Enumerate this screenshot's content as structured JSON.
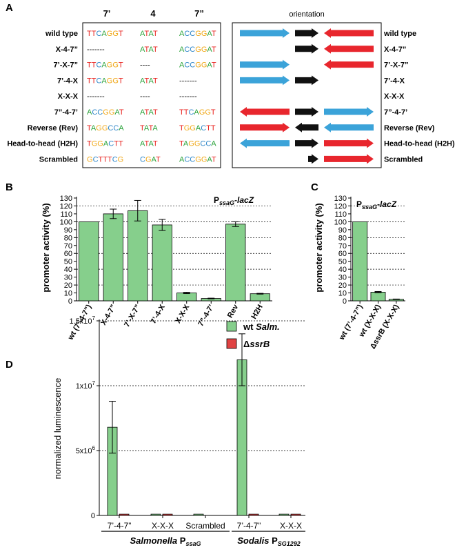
{
  "colors": {
    "A": "#2ca33c",
    "T": "#e8231f",
    "C": "#2e86c8",
    "G": "#f0a818",
    "-": "#000000",
    "blue": "#3ba3d9",
    "red": "#e8262d",
    "black": "#111111",
    "bar_green": "#86cf8c",
    "bar_red": "#e04343"
  },
  "panelA": {
    "label": "A",
    "col_headers": [
      "7’",
      "4",
      "7”"
    ],
    "orientation_label": "orientation",
    "rows": [
      {
        "name": "wild type",
        "s1": "TTCAGGT",
        "s2": "ATAT",
        "s3": "ACCGGAT",
        "a1": "blue-right",
        "a2": "black-right",
        "a3": "red-left"
      },
      {
        "name": "X-4-7”",
        "s1": "-------",
        "s2": "ATAT",
        "s3": "ACCGGAT",
        "a1": "",
        "a2": "black-right",
        "a3": "red-left"
      },
      {
        "name": "7’-X-7”",
        "s1": "TTCAGGT",
        "s2": "----",
        "s3": "ACCGGAT",
        "a1": "blue-right",
        "a2": "",
        "a3": "red-left"
      },
      {
        "name": "7’-4-X",
        "s1": "TTCAGGT",
        "s2": "ATAT",
        "s3": "-------",
        "a1": "blue-right",
        "a2": "black-right",
        "a3": ""
      },
      {
        "name": "X-X-X",
        "s1": "-------",
        "s2": "----",
        "s3": "-------",
        "a1": "",
        "a2": "",
        "a3": ""
      },
      {
        "name": "7”-4-7’",
        "s1": "ACCGGAT",
        "s2": "ATAT",
        "s3": "TTCAGGT",
        "a1": "red-left",
        "a2": "black-right",
        "a3": "blue-right"
      },
      {
        "name": "Reverse (Rev)",
        "s1": "TAGGCCA",
        "s2": "TATA",
        "s3": "TGGACTT",
        "a1": "red-right",
        "a2": "black-left",
        "a3": "blue-left"
      },
      {
        "name": "Head-to-head (H2H)",
        "s1": "TGGACTT",
        "s2": "ATAT",
        "s3": "TAGGCCA",
        "a1": "blue-left",
        "a2": "black-right",
        "a3": "red-right"
      },
      {
        "name": "Scrambled",
        "s1": "GCTTTCG",
        "s2": "CGAT",
        "s3": "ACCGGAT",
        "a1": "",
        "a2": "black-right-short",
        "a3": "red-right"
      }
    ]
  },
  "panelB": {
    "label": "B",
    "title_main": "P",
    "title_sub": "ssaG",
    "title_rest": "-lacZ",
    "ylabel": "promoter activity (%)"
  },
  "panelC": {
    "label": "C",
    "title_main": "P",
    "title_sub": "ssaG",
    "title_rest": "-lacZ",
    "ylabel": "promoter activity (%)"
  },
  "panelD": {
    "label": "D",
    "ylabel": "normalized luminescence",
    "legend": [
      {
        "prefix": "wt ",
        "italic": "Salm.",
        "color_key": "bar_green"
      },
      {
        "prefix": "Δ",
        "italic": "ssrB",
        "color_key": "bar_red"
      }
    ],
    "group_labels": [
      {
        "italic": "Salmonella",
        "plain": " P",
        "sub": "ssaG"
      },
      {
        "italic": "Sodalis",
        "plain": " P",
        "sub": "SG1292"
      }
    ]
  },
  "chart_data": [
    {
      "panel": "B",
      "type": "bar",
      "title": "PssaG-lacZ",
      "ylabel": "promoter activity (%)",
      "ylim": [
        0,
        130
      ],
      "yticks": [
        0,
        10,
        20,
        30,
        40,
        50,
        60,
        70,
        80,
        90,
        100,
        110,
        120,
        130
      ],
      "grid": "dotted horizontal lines at 20-120",
      "categories": [
        "wt (7’-4-7”)",
        "X-4-7”",
        "7’-X-7”",
        "7’-4-X",
        "X-X-X",
        "7”-4-7’",
        "Rev",
        "H2H"
      ],
      "values": [
        100,
        110,
        114,
        96,
        10,
        3,
        97,
        9
      ],
      "errors": [
        0,
        6,
        13,
        7,
        0.8,
        0.4,
        3,
        0.5
      ]
    },
    {
      "panel": "C",
      "type": "bar",
      "title": "PssaG-lacZ",
      "ylabel": "promoter activity (%)",
      "ylim": [
        0,
        130
      ],
      "yticks": [
        0,
        10,
        20,
        30,
        40,
        50,
        60,
        70,
        80,
        90,
        100,
        110,
        120,
        130
      ],
      "grid": "dotted horizontal lines at 20-120",
      "categories": [
        "wt (7’-4-7”)",
        "wt (X-X-X)",
        "ΔssrB (X-X-X)"
      ],
      "values": [
        100,
        11,
        2
      ],
      "errors": [
        0,
        0.8,
        0.3
      ]
    },
    {
      "panel": "D",
      "type": "bar",
      "ylabel": "normalized luminescence",
      "ylim": [
        0,
        15000000
      ],
      "ytick_labels": [
        "0",
        "5x10⁶",
        "1x10⁷",
        "1.5x10⁷"
      ],
      "yticks": [
        0,
        5000000,
        10000000,
        15000000
      ],
      "grid": "dotted horizontal lines at 5x10^6, 1x10^7, 1.5x10^7",
      "categories": [
        "7’-4-7”",
        "X-X-X",
        "Scrambled",
        "7’-4-7”",
        "X-X-X"
      ],
      "series": [
        {
          "name": "wt Salm.",
          "values": [
            6800000,
            100000,
            100000,
            12000000,
            100000
          ],
          "errors": [
            2000000,
            0,
            0,
            2000000,
            0
          ]
        },
        {
          "name": "ΔssrB",
          "values": [
            100000,
            100000,
            null,
            100000,
            100000
          ],
          "errors": [
            0,
            0,
            0,
            0,
            0
          ]
        }
      ]
    }
  ]
}
